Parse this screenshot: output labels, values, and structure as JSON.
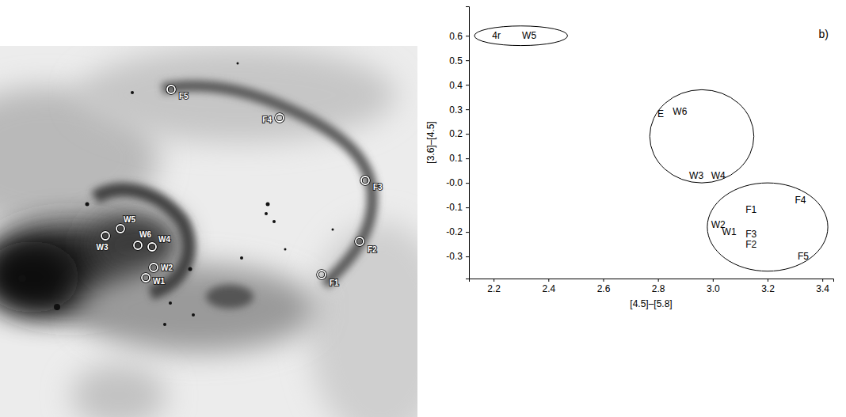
{
  "chart_data": {
    "type": "scatter",
    "marker": "text",
    "panel_label": "b)",
    "x_label": "[4.5]–[5.8]",
    "y_label": "[3.6]–[4.5]",
    "labels": [
      "4r",
      "W5",
      "E",
      "W6",
      "W3",
      "W4",
      "F1",
      "F4",
      "W2",
      "W1",
      "F3",
      "F2",
      "F5"
    ],
    "x": [
      2.21,
      2.33,
      2.81,
      2.88,
      2.94,
      3.02,
      3.14,
      3.32,
      3.02,
      3.06,
      3.14,
      3.14,
      3.33
    ],
    "values": [
      0.6,
      0.6,
      0.28,
      0.29,
      0.03,
      0.03,
      -0.11,
      -0.07,
      -0.17,
      -0.2,
      -0.21,
      -0.25,
      -0.3
    ],
    "groups": [
      {
        "cx": 2.3,
        "cy": 0.6,
        "rx": 0.17,
        "ry": 0.04
      },
      {
        "cx": 2.96,
        "cy": 0.19,
        "rx": 0.19,
        "ry": 0.19
      },
      {
        "cx": 3.2,
        "cy": -0.18,
        "rx": 0.22,
        "ry": 0.18
      }
    ],
    "xlim": [
      2.11,
      3.44
    ],
    "ylim": [
      -0.39,
      0.72
    ],
    "xticks": [
      2.2,
      2.4,
      2.6,
      2.8,
      {
        "value": 3,
        "label": "3.0"
      },
      3.2,
      3.4
    ],
    "yticks": [
      -0.3,
      -0.2,
      -0.1,
      {
        "value": 0,
        "label": "-0.0"
      },
      0.1,
      0.2,
      0.3,
      0.4,
      0.5,
      0.6
    ],
    "grid": false
  },
  "image": {
    "markers": [
      "F5",
      "F4",
      "F3",
      "F2",
      "F1",
      "W5",
      "W3",
      "W6",
      "W4",
      "W2",
      "W1"
    ]
  }
}
